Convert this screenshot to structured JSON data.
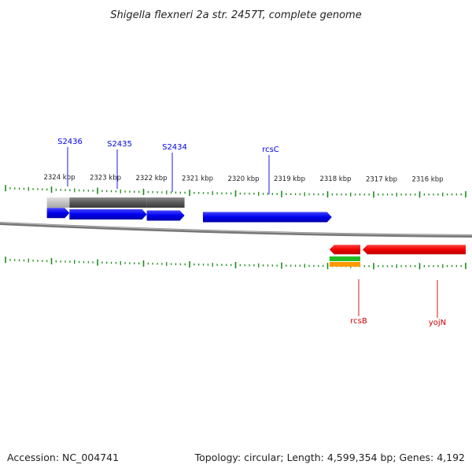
{
  "title": "Shigella flexneri 2a str. 2457T, complete genome",
  "footer": {
    "accession": "Accession: NC_004741",
    "summary": "Topology: circular; Length: 4,599,354 bp; Genes: 4,192"
  },
  "colors": {
    "forward_gene": "#0000ee",
    "reverse_gene": "#ee0000",
    "backbone": "#888888",
    "tick": "#1a8a1a",
    "label_text": "#222222"
  },
  "kbp_labels": [
    "2324 kbp",
    "2323 kbp",
    "2322 kbp",
    "2321 kbp",
    "2320 kbp",
    "2319 kbp",
    "2318 kbp",
    "2317 kbp",
    "2316 kbp"
  ],
  "genes": [
    {
      "name": "S2436",
      "strand": "+",
      "start_kbp": 2324.1,
      "end_kbp": 2323.61
    },
    {
      "name": "S2435",
      "strand": "+",
      "start_kbp": 2323.61,
      "end_kbp": 2321.93
    },
    {
      "name": "S2434",
      "strand": "+",
      "start_kbp": 2321.93,
      "end_kbp": 2321.11
    },
    {
      "name": "rcsC",
      "strand": "+",
      "start_kbp": 2320.71,
      "end_kbp": 2317.91
    },
    {
      "name": "rcsB",
      "strand": "-",
      "start_kbp": 2317.96,
      "end_kbp": 2317.29
    },
    {
      "name": "yojN",
      "strand": "-",
      "start_kbp": 2317.24,
      "end_kbp": 2315.0
    }
  ],
  "features_forward": [
    {
      "kind": "light-grey",
      "start_kbp": 2324.1,
      "end_kbp": 2323.61
    },
    {
      "kind": "dark-grey",
      "start_kbp": 2323.61,
      "end_kbp": 2321.93
    },
    {
      "kind": "dark-grey",
      "start_kbp": 2321.93,
      "end_kbp": 2321.11
    }
  ],
  "features_reverse": [
    {
      "kind": "green",
      "start_kbp": 2317.96,
      "end_kbp": 2317.29
    },
    {
      "kind": "orange",
      "start_kbp": 2317.96,
      "end_kbp": 2317.29
    }
  ]
}
